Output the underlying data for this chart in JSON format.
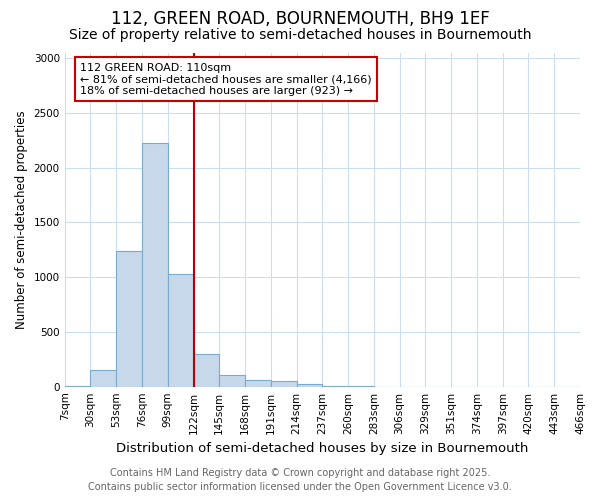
{
  "title": "112, GREEN ROAD, BOURNEMOUTH, BH9 1EF",
  "subtitle": "Size of property relative to semi-detached houses in Bournemouth",
  "xlabel": "Distribution of semi-detached houses by size in Bournemouth",
  "ylabel": "Number of semi-detached properties",
  "bins": [
    "7sqm",
    "30sqm",
    "53sqm",
    "76sqm",
    "99sqm",
    "122sqm",
    "145sqm",
    "168sqm",
    "191sqm",
    "214sqm",
    "237sqm",
    "260sqm",
    "283sqm",
    "306sqm",
    "329sqm",
    "351sqm",
    "374sqm",
    "397sqm",
    "420sqm",
    "443sqm",
    "466sqm"
  ],
  "values": [
    10,
    150,
    1240,
    2220,
    1030,
    295,
    110,
    60,
    50,
    25,
    10,
    10,
    0,
    0,
    0,
    0,
    0,
    0,
    0,
    0
  ],
  "bar_color": "#c8d8eb",
  "bar_edge_color": "#7aabcc",
  "vline_color": "#bb0000",
  "annotation_line1": "112 GREEN ROAD: 110sqm",
  "annotation_line2": "← 81% of semi-detached houses are smaller (4,166)",
  "annotation_line3": "18% of semi-detached houses are larger (923) →",
  "annotation_box_color": "#ffffff",
  "annotation_box_edge": "#cc0000",
  "ylim": [
    0,
    3050
  ],
  "yticks": [
    0,
    500,
    1000,
    1500,
    2000,
    2500,
    3000
  ],
  "footer_line1": "Contains HM Land Registry data © Crown copyright and database right 2025.",
  "footer_line2": "Contains public sector information licensed under the Open Government Licence v3.0.",
  "bg_color": "#ffffff",
  "grid_color": "#ccddee",
  "title_fontsize": 12,
  "subtitle_fontsize": 10,
  "xlabel_fontsize": 9.5,
  "ylabel_fontsize": 8.5,
  "tick_fontsize": 7.5,
  "annot_fontsize": 8,
  "footer_fontsize": 7
}
